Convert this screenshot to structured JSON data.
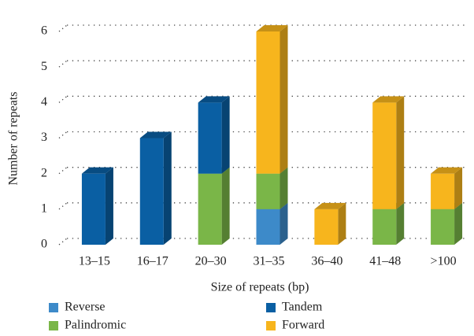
{
  "chart_data": {
    "type": "bar3d_stacked",
    "x_label": "Size of repeats (bp)",
    "y_label": "Number of repeats",
    "categories": [
      "13–15",
      "16–17",
      "20–30",
      "31–35",
      "36–40",
      "41–48",
      ">100"
    ],
    "series": [
      {
        "name": "Reverse",
        "color": "#3d8ac9",
        "values": [
          0,
          0,
          0,
          1,
          0,
          0,
          0
        ]
      },
      {
        "name": "Palindromic",
        "color": "#7ab648",
        "values": [
          0,
          0,
          2,
          1,
          0,
          1,
          1
        ]
      },
      {
        "name": "Tandem",
        "color": "#0a5fa3",
        "values": [
          2,
          3,
          2,
          0,
          0,
          0,
          0
        ]
      },
      {
        "name": "Forward",
        "color": "#f7b51d",
        "values": [
          0,
          0,
          0,
          4,
          1,
          3,
          1
        ]
      }
    ],
    "legend_order": [
      0,
      2,
      1,
      3
    ],
    "ylim": [
      0,
      6
    ],
    "yticks": [
      0,
      1,
      2,
      3,
      4,
      5,
      6
    ],
    "grid": true
  }
}
